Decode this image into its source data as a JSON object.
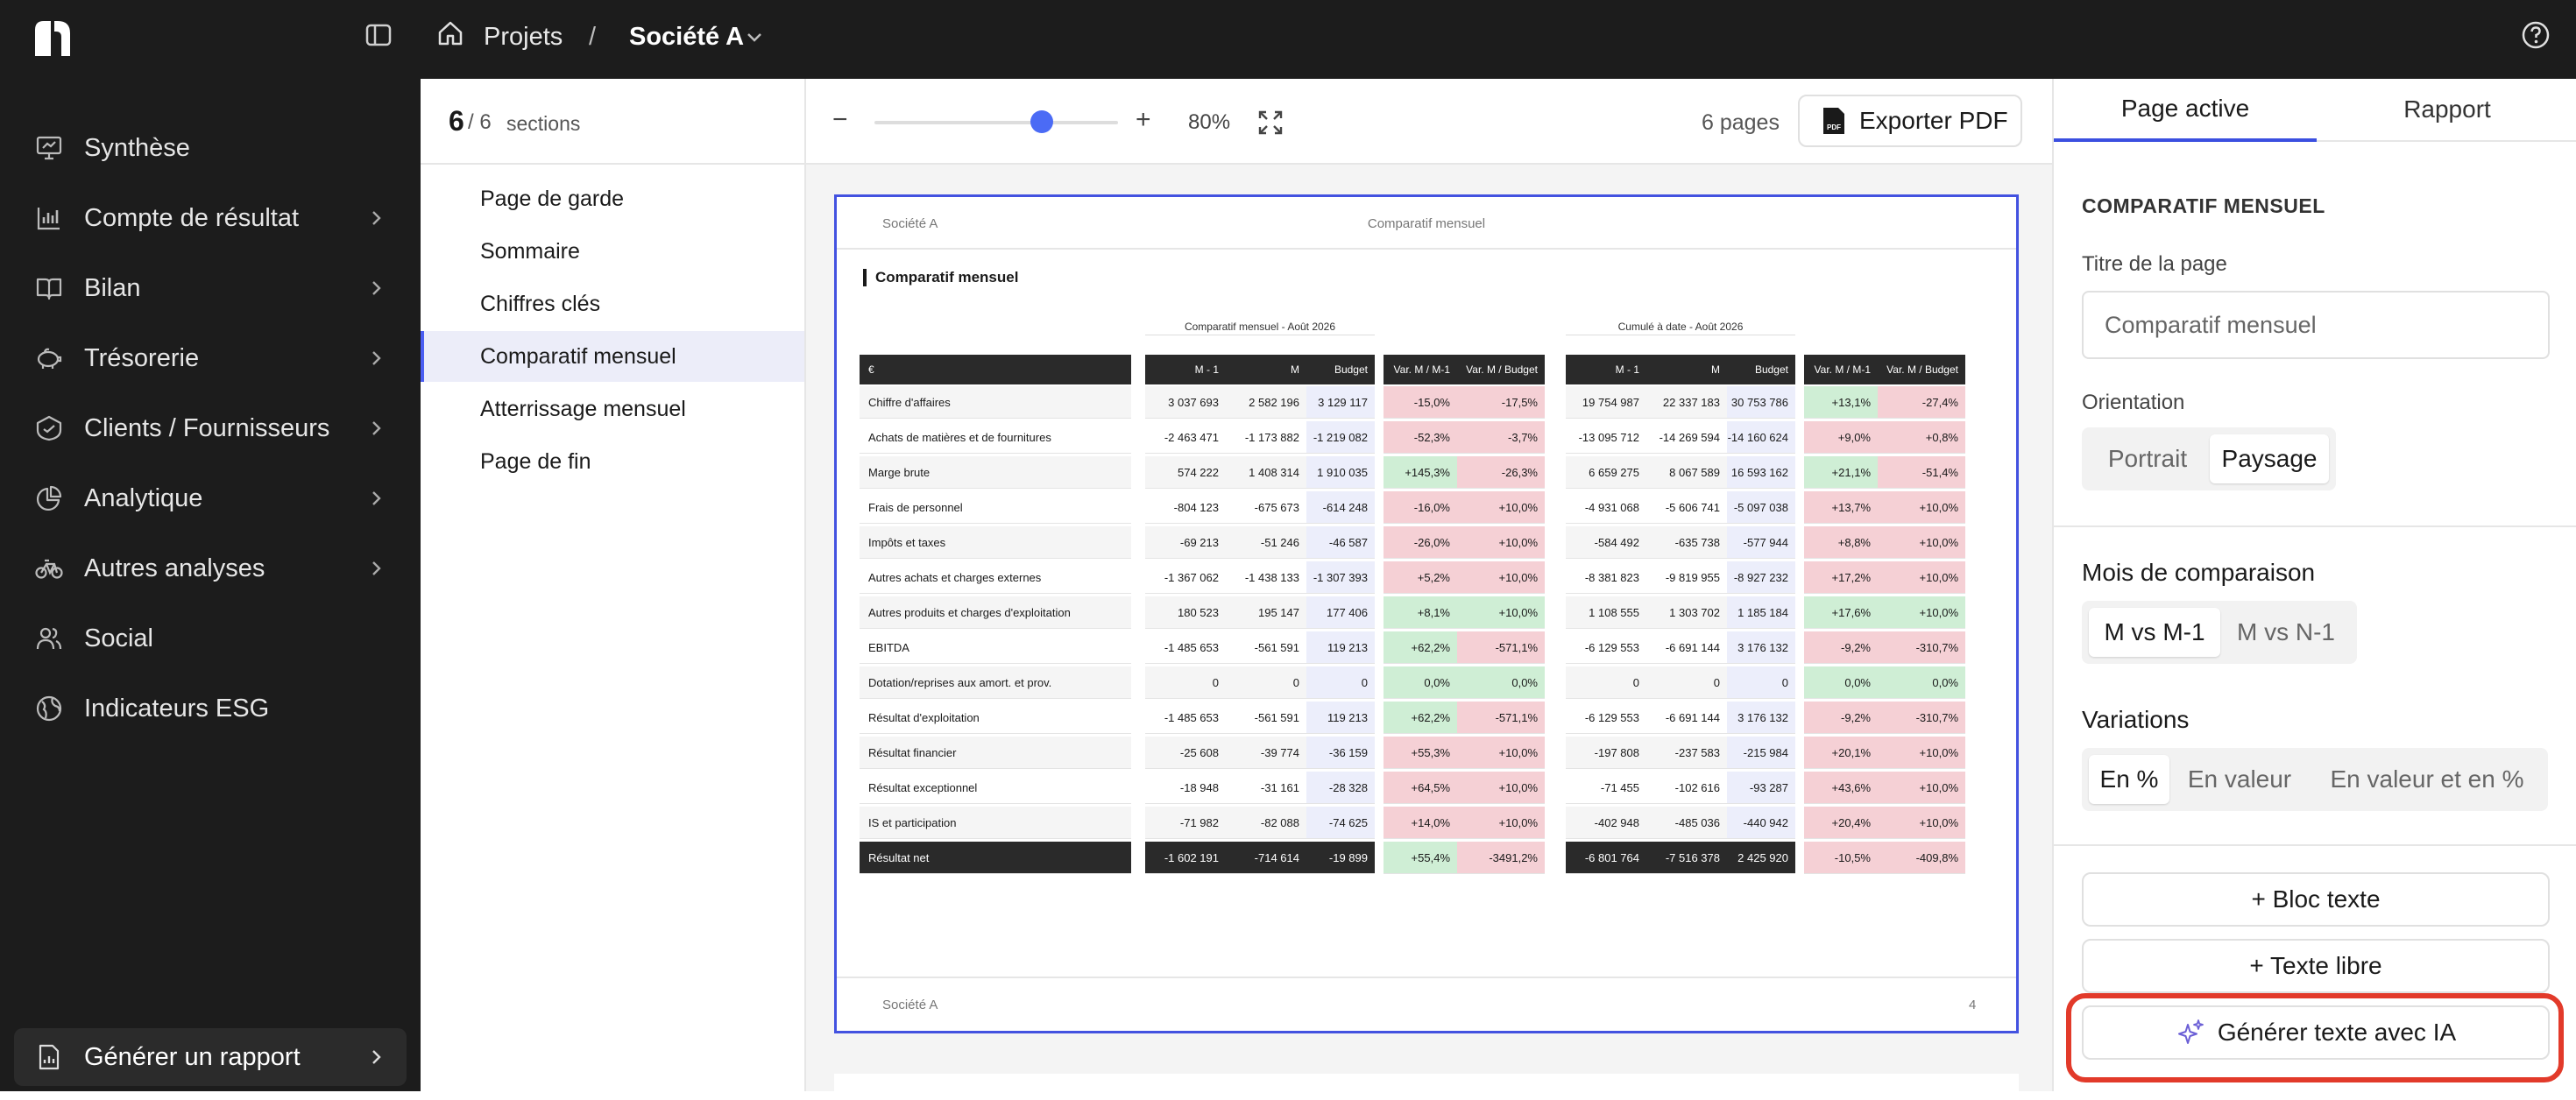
{
  "topbar": {
    "breadcrumb": {
      "projets": "Projets",
      "separator": "/",
      "societe": "Société A"
    },
    "icons": [
      "app-logo-icon",
      "sidebar-toggle-icon",
      "home-icon",
      "chevron-down-icon",
      "help-icon"
    ]
  },
  "sidebar": {
    "items": [
      {
        "label": "Synthèse",
        "icon": "presentation-icon",
        "has_chevron": false
      },
      {
        "label": "Compte de résultat",
        "icon": "bar-chart-icon",
        "has_chevron": true
      },
      {
        "label": "Bilan",
        "icon": "book-icon",
        "has_chevron": true
      },
      {
        "label": "Trésorerie",
        "icon": "piggy-bank-icon",
        "has_chevron": true
      },
      {
        "label": "Clients / Fournisseurs",
        "icon": "handshake-icon",
        "has_chevron": true
      },
      {
        "label": "Analytique",
        "icon": "pie-chart-icon",
        "has_chevron": true
      },
      {
        "label": "Autres analyses",
        "icon": "bike-icon",
        "has_chevron": true
      },
      {
        "label": "Social",
        "icon": "users-icon",
        "has_chevron": false
      },
      {
        "label": "Indicateurs ESG",
        "icon": "globe-icon",
        "has_chevron": false
      }
    ],
    "bottom_item": {
      "label": "Générer un rapport",
      "icon": "report-icon",
      "has_chevron": true
    }
  },
  "sections": {
    "current": "6",
    "total": "/ 6",
    "word": "sections",
    "items": [
      "Page de garde",
      "Sommaire",
      "Chiffres clés",
      "Comparatif mensuel",
      "Atterrissage mensuel",
      "Page de fin"
    ],
    "active_index": 3
  },
  "toolbar": {
    "zoom_minus": "−",
    "zoom_plus": "+",
    "zoom_value": "80%",
    "zoom_fraction": 0.8,
    "pages_count": "6 pages",
    "export_label": "Exporter PDF"
  },
  "page": {
    "header_left": "Société A",
    "header_center": "Comparatif mensuel",
    "title": "Comparatif mensuel",
    "footer_left": "Société A",
    "footer_right": "4",
    "table": {
      "group1": "Comparatif mensuel - Août 2026",
      "group2": "Cumulé à date - Août 2026",
      "headers": [
        "€",
        "M - 1",
        "M",
        "Budget",
        "Var. M / M-1",
        "Var. M / Budget",
        "M - 1",
        "M",
        "Budget",
        "Var. M / M-1",
        "Var. M / Budget"
      ],
      "rows": [
        [
          "Chiffre d'affaires",
          "3 037 693",
          "2 582 196",
          "3 129 117",
          "-15,0%",
          "-17,5%",
          "19 754 987",
          "22 337 183",
          "30 753 786",
          "+13,1%",
          "-27,4%"
        ],
        [
          "Achats de matières et de fournitures",
          "-2 463 471",
          "-1 173 882",
          "-1 219 082",
          "-52,3%",
          "-3,7%",
          "-13 095 712",
          "-14 269 594",
          "-14 160 624",
          "+9,0%",
          "+0,8%"
        ],
        [
          "Marge brute",
          "574 222",
          "1 408 314",
          "1 910 035",
          "+145,3%",
          "-26,3%",
          "6 659 275",
          "8 067 589",
          "16 593 162",
          "+21,1%",
          "-51,4%"
        ],
        [
          "Frais de personnel",
          "-804 123",
          "-675 673",
          "-614 248",
          "-16,0%",
          "+10,0%",
          "-4 931 068",
          "-5 606 741",
          "-5 097 038",
          "+13,7%",
          "+10,0%"
        ],
        [
          "Impôts et taxes",
          "-69 213",
          "-51 246",
          "-46 587",
          "-26,0%",
          "+10,0%",
          "-584 492",
          "-635 738",
          "-577 944",
          "+8,8%",
          "+10,0%"
        ],
        [
          "Autres achats et charges externes",
          "-1 367 062",
          "-1 438 133",
          "-1 307 393",
          "+5,2%",
          "+10,0%",
          "-8 381 823",
          "-9 819 955",
          "-8 927 232",
          "+17,2%",
          "+10,0%"
        ],
        [
          "Autres produits et charges d'exploitation",
          "180 523",
          "195 147",
          "177 406",
          "+8,1%",
          "+10,0%",
          "1 108 555",
          "1 303 702",
          "1 185 184",
          "+17,6%",
          "+10,0%"
        ],
        [
          "EBITDA",
          "-1 485 653",
          "-561 591",
          "119 213",
          "+62,2%",
          "-571,1%",
          "-6 129 553",
          "-6 691 144",
          "3 176 132",
          "-9,2%",
          "-310,7%"
        ],
        [
          "Dotation/reprises aux amort. et prov.",
          "0",
          "0",
          "0",
          "0,0%",
          "0,0%",
          "0",
          "0",
          "0",
          "0,0%",
          "0,0%"
        ],
        [
          "Résultat d'exploitation",
          "-1 485 653",
          "-561 591",
          "119 213",
          "+62,2%",
          "-571,1%",
          "-6 129 553",
          "-6 691 144",
          "3 176 132",
          "-9,2%",
          "-310,7%"
        ],
        [
          "Résultat financier",
          "-25 608",
          "-39 774",
          "-36 159",
          "+55,3%",
          "+10,0%",
          "-197 808",
          "-237 583",
          "-215 984",
          "+20,1%",
          "+10,0%"
        ],
        [
          "Résultat exceptionnel",
          "-18 948",
          "-31 161",
          "-28 328",
          "+64,5%",
          "+10,0%",
          "-71 455",
          "-102 616",
          "-93 287",
          "+43,6%",
          "+10,0%"
        ],
        [
          "IS et participation",
          "-71 982",
          "-82 088",
          "-74 625",
          "+14,0%",
          "+10,0%",
          "-402 948",
          "-485 036",
          "-440 942",
          "+20,4%",
          "+10,0%"
        ],
        [
          "Résultat net",
          "-1 602 191",
          "-714 614",
          "-19 899",
          "+55,4%",
          "-3491,2%",
          "-6 801 764",
          "-7 516 378",
          "2 425 920",
          "-10,5%",
          "-409,8%"
        ]
      ],
      "var_status": [
        [
          "neg",
          "neg",
          "pos",
          "neg"
        ],
        [
          "neg",
          "neg",
          "neg",
          "neg"
        ],
        [
          "pos",
          "neg",
          "pos",
          "neg"
        ],
        [
          "neg",
          "neg",
          "neg",
          "neg"
        ],
        [
          "neg",
          "neg",
          "neg",
          "neg"
        ],
        [
          "neg",
          "neg",
          "neg",
          "neg"
        ],
        [
          "pos",
          "pos",
          "pos",
          "pos"
        ],
        [
          "pos",
          "neg",
          "neg",
          "neg"
        ],
        [
          "zer",
          "zer",
          "zer",
          "zer"
        ],
        [
          "pos",
          "neg",
          "neg",
          "neg"
        ],
        [
          "neg",
          "neg",
          "neg",
          "neg"
        ],
        [
          "neg",
          "neg",
          "neg",
          "neg"
        ],
        [
          "neg",
          "neg",
          "neg",
          "neg"
        ],
        [
          "pos",
          "neg",
          "neg",
          "neg"
        ]
      ]
    }
  },
  "rpanel": {
    "tabs": [
      "Page active",
      "Rapport"
    ],
    "section_title": "COMPARATIF MENSUEL",
    "page_title_label": "Titre de la page",
    "page_title_value": "Comparatif mensuel",
    "orientation_label": "Orientation",
    "orientation_options": [
      "Portrait",
      "Paysage"
    ],
    "orientation_selected": "Paysage",
    "comparison_label": "Mois de comparaison",
    "comparison_options": [
      "M vs M-1",
      "M vs N-1"
    ],
    "comparison_selected": "M vs M-1",
    "variations_label": "Variations",
    "variations_options": [
      "En %",
      "En valeur",
      "En valeur et en %"
    ],
    "variations_selected": "En %",
    "btn_bloc_texte": "+ Bloc texte",
    "btn_texte_libre": "+ Texte libre",
    "btn_generer_ia": "Générer texte avec IA"
  },
  "colors": {
    "accent": "#4352e0",
    "highlight": "#e23a2a",
    "positive": "#cfeed5",
    "negative": "#f5d0d5",
    "dark": "#1c1c1c"
  }
}
